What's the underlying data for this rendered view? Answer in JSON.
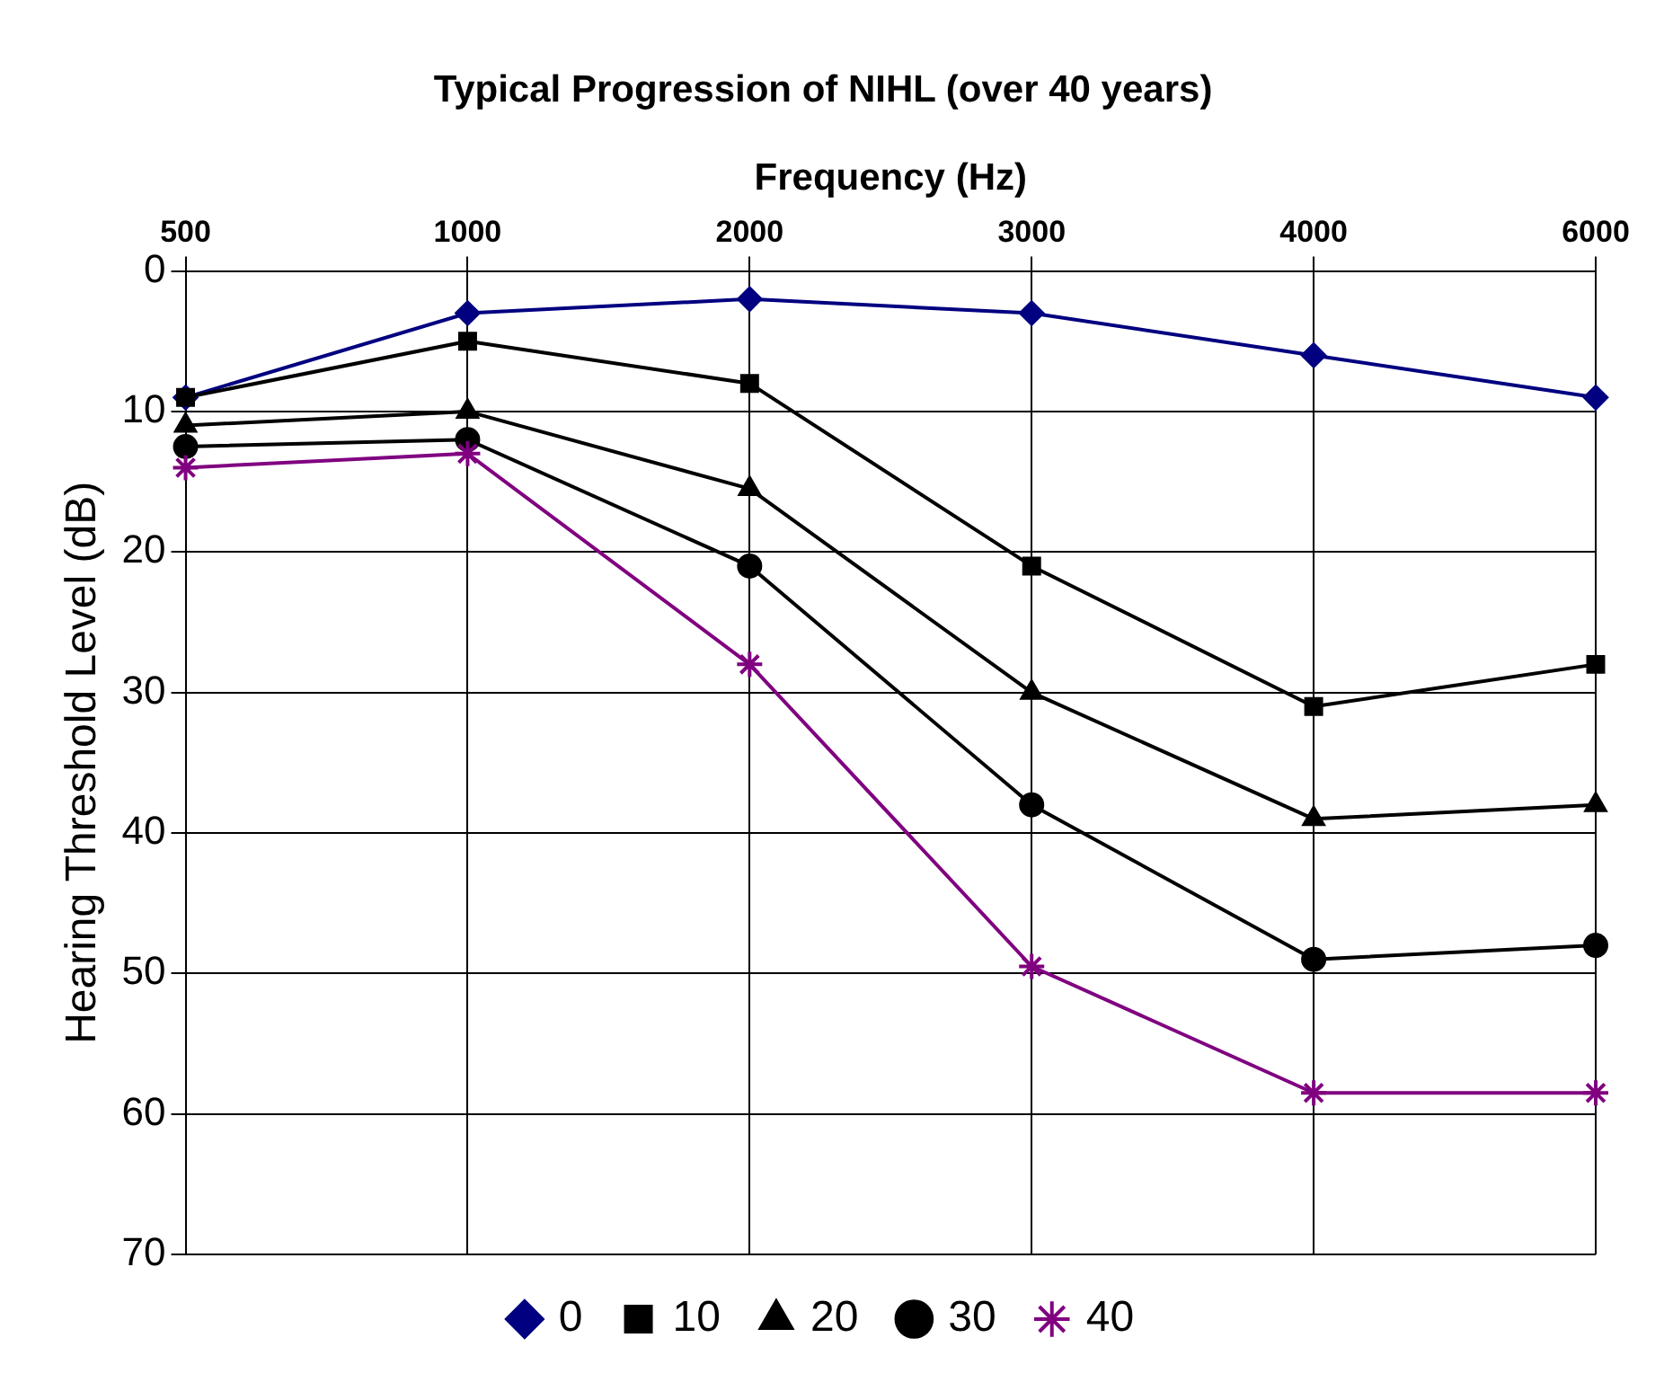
{
  "chart_data": {
    "type": "line",
    "title": "Typical Progression of NIHL (over 40 years)",
    "xlabel": "Frequency (Hz)",
    "ylabel": "Hearing Threshold Level (dB)",
    "categories": [
      "500",
      "1000",
      "2000",
      "3000",
      "4000",
      "6000"
    ],
    "ylim": [
      70,
      0
    ],
    "yticks": [
      0,
      10,
      20,
      30,
      40,
      50,
      60,
      70
    ],
    "grid": true,
    "legend": "bottom",
    "series": [
      {
        "name": "0",
        "color": "#000080",
        "marker": "diamond",
        "values": [
          9,
          3,
          2,
          3,
          6,
          9
        ]
      },
      {
        "name": "10",
        "color": "#000000",
        "marker": "square",
        "values": [
          9,
          5,
          8,
          21,
          31,
          28
        ]
      },
      {
        "name": "20",
        "color": "#000000",
        "marker": "triangle",
        "values": [
          11,
          10,
          15.5,
          30,
          39,
          38
        ]
      },
      {
        "name": "30",
        "color": "#000000",
        "marker": "circle",
        "values": [
          12.5,
          12,
          21,
          38,
          49,
          48
        ]
      },
      {
        "name": "40",
        "color": "#800080",
        "marker": "cross",
        "values": [
          14,
          13,
          28,
          49.5,
          58.5,
          58.5
        ]
      }
    ]
  }
}
